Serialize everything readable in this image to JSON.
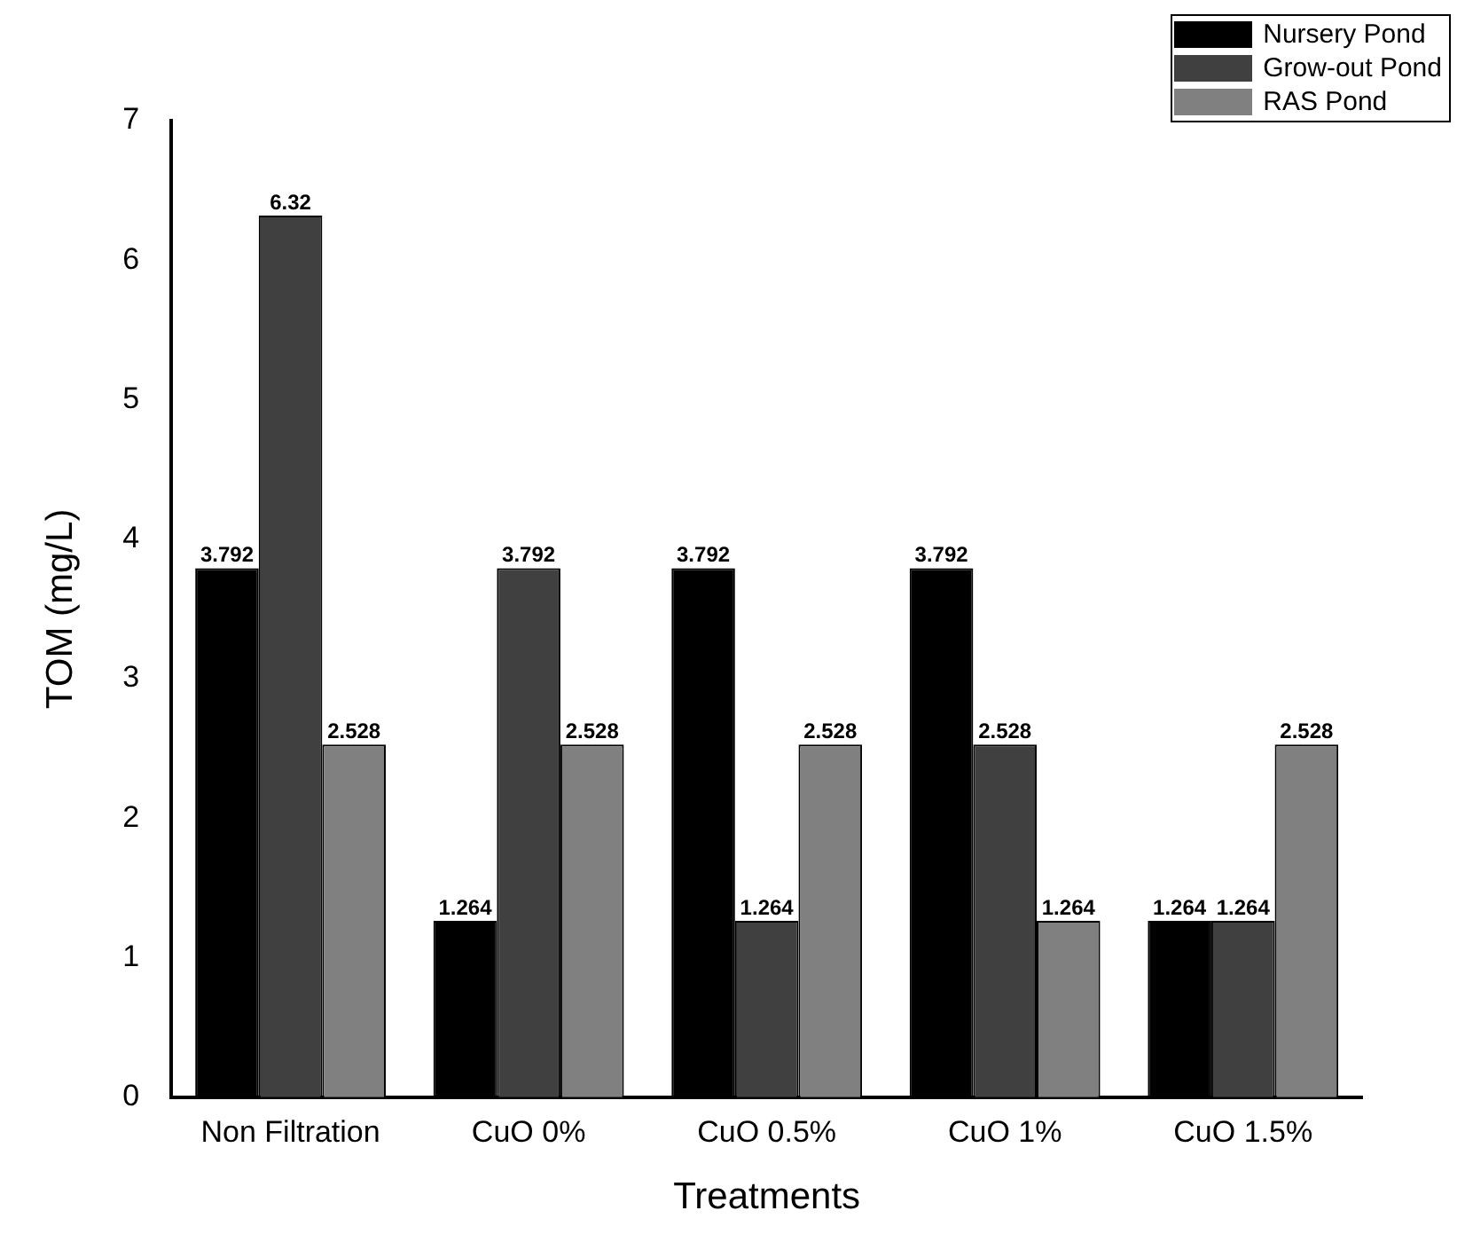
{
  "chart_data": {
    "type": "bar",
    "xlabel": "Treatments",
    "ylabel": "TOM (mg/L)",
    "categories": [
      "Non Filtration",
      "CuO 0%",
      "CuO 0.5%",
      "CuO 1%",
      "CuO 1.5%"
    ],
    "series": [
      {
        "name": "Nursery Pond",
        "color": "#000000",
        "values": [
          3.792,
          1.264,
          3.792,
          3.792,
          1.264
        ]
      },
      {
        "name": "Grow-out Pond",
        "color": "#404040",
        "values": [
          6.32,
          3.792,
          1.264,
          2.528,
          1.264
        ]
      },
      {
        "name": "RAS Pond",
        "color": "#808080",
        "values": [
          2.528,
          2.528,
          2.528,
          1.264,
          2.528
        ]
      }
    ],
    "ylim": [
      0,
      7
    ],
    "yticks": [
      0,
      1,
      2,
      3,
      4,
      5,
      6,
      7
    ],
    "grid": false,
    "legend": "top right",
    "data_labels": true
  }
}
